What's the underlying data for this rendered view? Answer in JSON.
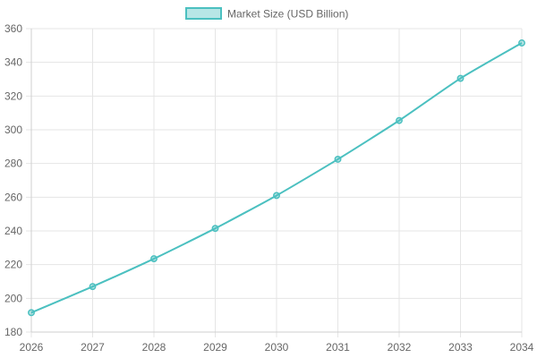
{
  "chart_data": {
    "type": "line",
    "title": "",
    "xlabel": "",
    "ylabel": "",
    "x": [
      "2026",
      "2027",
      "2028",
      "2029",
      "2030",
      "2031",
      "2032",
      "2033",
      "2034"
    ],
    "series": [
      {
        "name": "Market Size (USD Billion)",
        "values": [
          191.5,
          207,
          223.5,
          241.5,
          261,
          282.5,
          305.5,
          330.5,
          351.5
        ]
      }
    ],
    "ylim": [
      180,
      360
    ],
    "yticks": [
      "180",
      "200",
      "220",
      "240",
      "260",
      "280",
      "300",
      "320",
      "340",
      "360"
    ],
    "grid": true,
    "legend_position": "top-center",
    "colors": {
      "line": "#4bc0c0",
      "fill": "rgba(75,192,192,0.4)",
      "grid": "#e5e5e5",
      "text": "#666666"
    }
  }
}
